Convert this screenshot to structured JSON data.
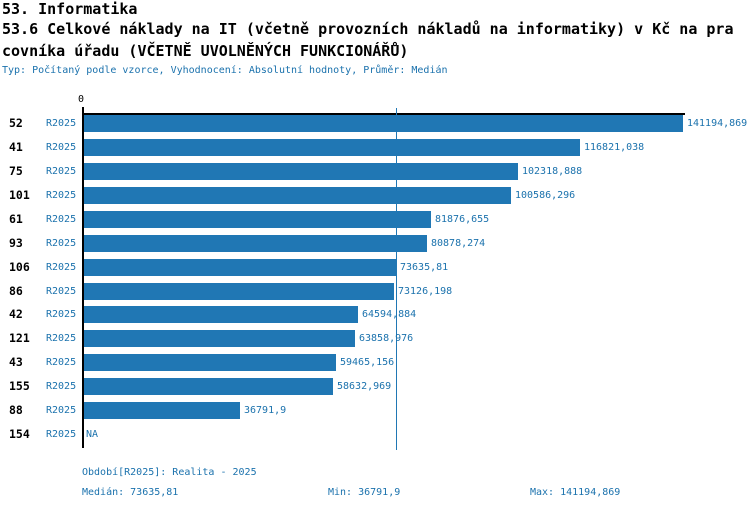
{
  "header": {
    "line1": "53. Informatika",
    "line2": "53.6 Celkové náklady na IT (včetně provozních nákladů na informatiky) v Kč na pra",
    "line3": "covníka úřadu (VČETNĚ UVOLNĚNÝCH FUNKCIONÁŘŮ)",
    "meta": "Typ: Počítaný podle vzorce, Vyhodnocení: Absolutní hodnoty, Průměr: Medián"
  },
  "chart_data": {
    "type": "bar",
    "orientation": "horizontal",
    "title": "53.6 Celkové náklady na IT (včetně provozních nákladů na informatiky) v Kč na pracovníka úřadu (VČETNĚ UVOLNĚNÝCH FUNKCIONÁŘŮ)",
    "axis_zero_label": "0",
    "xlim": [
      0,
      141194.869
    ],
    "grid": false,
    "legend": false,
    "median_value": 73635.81,
    "min_value": 36791.9,
    "max_value": 141194.869,
    "rows": [
      {
        "category": "52",
        "period": "R2025",
        "value": 141194.869,
        "label": "141194,869"
      },
      {
        "category": "41",
        "period": "R2025",
        "value": 116821.038,
        "label": "116821,038"
      },
      {
        "category": "75",
        "period": "R2025",
        "value": 102318.888,
        "label": "102318,888"
      },
      {
        "category": "101",
        "period": "R2025",
        "value": 100586.296,
        "label": "100586,296"
      },
      {
        "category": "61",
        "period": "R2025",
        "value": 81876.655,
        "label": "81876,655"
      },
      {
        "category": "93",
        "period": "R2025",
        "value": 80878.274,
        "label": "80878,274"
      },
      {
        "category": "106",
        "period": "R2025",
        "value": 73635.81,
        "label": "73635,81"
      },
      {
        "category": "86",
        "period": "R2025",
        "value": 73126.198,
        "label": "73126,198"
      },
      {
        "category": "42",
        "period": "R2025",
        "value": 64594.884,
        "label": "64594,884"
      },
      {
        "category": "121",
        "period": "R2025",
        "value": 63858.976,
        "label": "63858,976"
      },
      {
        "category": "43",
        "period": "R2025",
        "value": 59465.156,
        "label": "59465,156"
      },
      {
        "category": "155",
        "period": "R2025",
        "value": 58632.969,
        "label": "58632,969"
      },
      {
        "category": "88",
        "period": "R2025",
        "value": 36791.9,
        "label": "36791,9"
      },
      {
        "category": "154",
        "period": "R2025",
        "value": null,
        "label": "NA"
      }
    ]
  },
  "footer": {
    "period_line": "Období[R2025]: Realita - 2025",
    "median": "Medián: 73635,81",
    "min": "Min: 36791,9",
    "max": "Max: 141194,869"
  },
  "colors": {
    "bar": "#2077b4",
    "text_blue": "#1b72ad",
    "axis": "#000000"
  }
}
